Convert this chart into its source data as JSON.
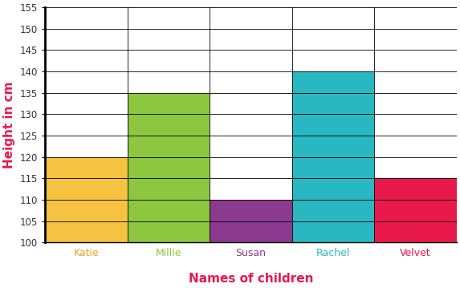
{
  "categories": [
    "Katie",
    "Millie",
    "Susan",
    "Rachel",
    "Velvet"
  ],
  "values": [
    120,
    135,
    110,
    140,
    115
  ],
  "bar_colors": [
    "#F5C242",
    "#8DC63F",
    "#8B3A8F",
    "#29B8C2",
    "#E8194B"
  ],
  "xlabel_colors": [
    "#F5A020",
    "#8DC63F",
    "#8B3A8F",
    "#29B8C2",
    "#E8194B"
  ],
  "title_x": "Names of children",
  "title_y": "Height in cm",
  "title_x_color": "#E8194B",
  "title_y_color": "#E8194B",
  "ylim": [
    100,
    155
  ],
  "yticks": [
    100,
    105,
    110,
    115,
    120,
    125,
    130,
    135,
    140,
    145,
    150,
    155
  ],
  "grid_color": "#000000",
  "background_color": "#ffffff",
  "bar_width": 1.0,
  "figsize": [
    5.73,
    3.59
  ],
  "dpi": 100
}
